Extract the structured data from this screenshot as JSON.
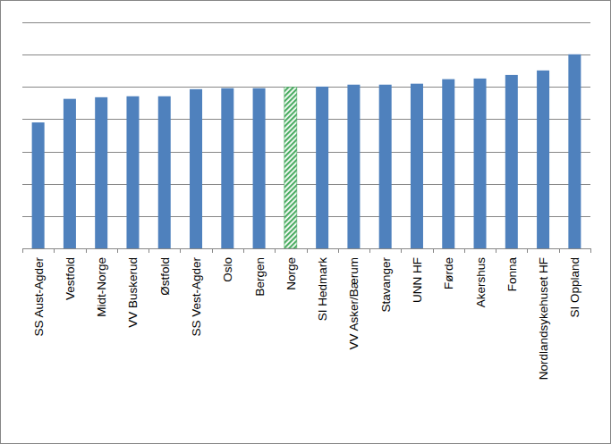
{
  "chart_data": {
    "type": "bar",
    "categories": [
      "SS Aust-Agder",
      "Vestfold",
      "Midt-Norge",
      "VV Buskerud",
      "Østfold",
      "SS Vest-Agder",
      "Oslo",
      "Bergen",
      "Norge",
      "SI Hedmark",
      "VV Asker/Bærum",
      "Stavanger",
      "UNN HF",
      "Førde",
      "Akershus",
      "Fonna",
      "Nordlandsykehuset HF",
      "SI Oppland"
    ],
    "values": [
      3.9,
      4.63,
      4.68,
      4.71,
      4.71,
      4.93,
      4.96,
      4.96,
      4.99,
      5.01,
      5.07,
      5.07,
      5.1,
      5.24,
      5.26,
      5.37,
      5.51,
      6.01
    ],
    "colors": [
      "#4f81bd",
      "#4f81bd",
      "#4f81bd",
      "#4f81bd",
      "#4f81bd",
      "#4f81bd",
      "#4f81bd",
      "#4f81bd",
      "#4bac62",
      "#4f81bd",
      "#4f81bd",
      "#4f81bd",
      "#4f81bd",
      "#4f81bd",
      "#4f81bd",
      "#4f81bd",
      "#4f81bd",
      "#4f81bd"
    ],
    "ylim": [
      0,
      7
    ],
    "yticks": [
      0,
      1,
      2,
      3,
      4,
      5,
      6,
      7
    ],
    "grid": true,
    "tick_labels": "x"
  }
}
